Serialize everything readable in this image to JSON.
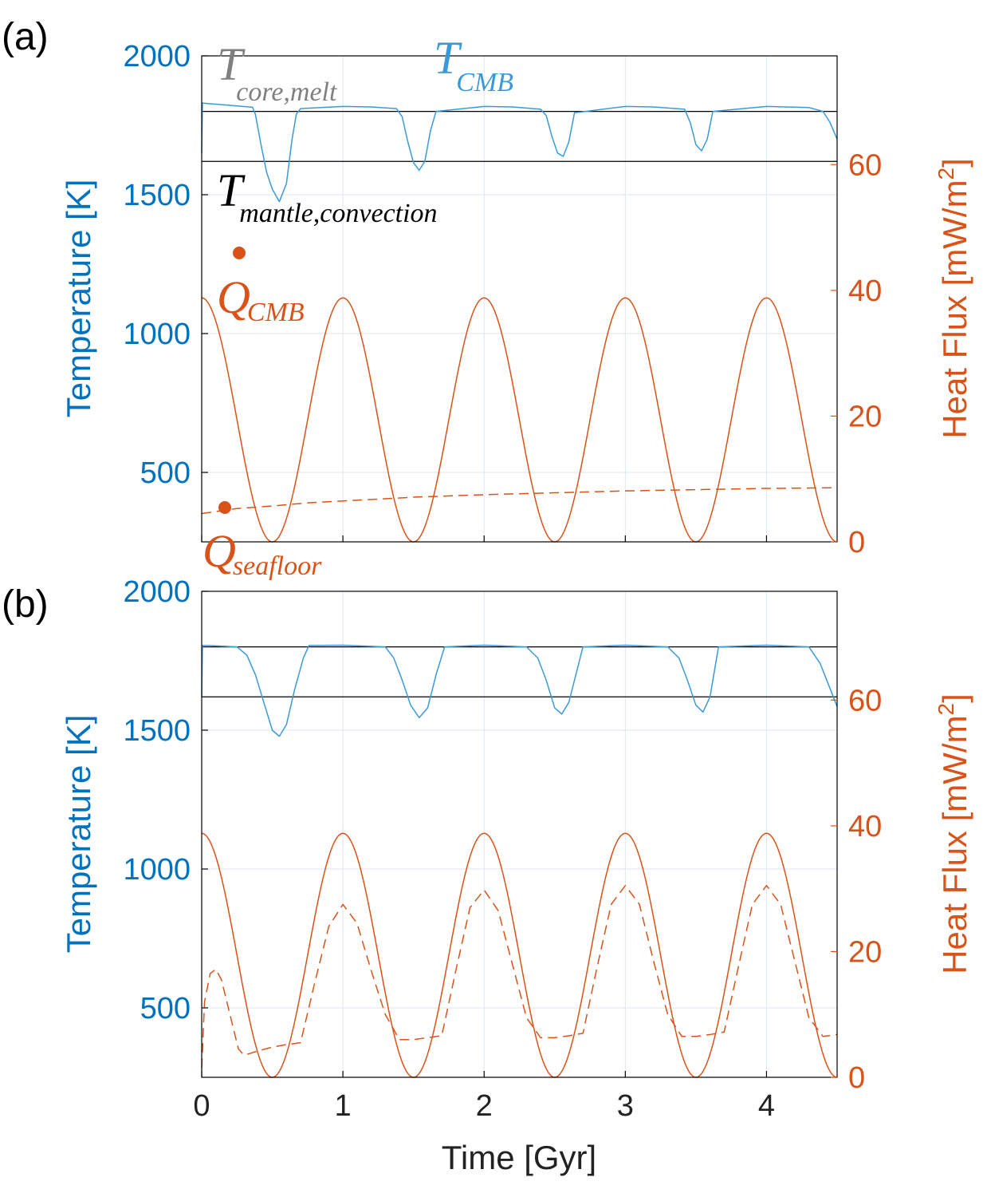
{
  "colors": {
    "temperature": "#0072BD",
    "t_cmb_line": "#3A9AD9",
    "heat_flux": "#D95319",
    "reference": "#000000",
    "core_melt_label": "#808080",
    "grid": "#DDE6EF"
  },
  "chart_data": [
    {
      "panel": "(a)",
      "type": "line",
      "ylabel_left": "Temperature [K]",
      "ylabel_right_main": "Heat Flux [mW/m",
      "ylabel_right_sup": "2",
      "ylabel_right_close": "]",
      "xlim": [
        0,
        4.5
      ],
      "ylim_left": [
        250,
        2000
      ],
      "ylim_right": [
        0,
        77.3
      ],
      "left_ticks": [
        500,
        1000,
        1500,
        2000
      ],
      "right_ticks": [
        0,
        20,
        40,
        60
      ],
      "x_ticks": [
        0,
        1,
        2,
        3,
        4
      ],
      "grid": true,
      "reference_lines": [
        {
          "name": "T core,melt",
          "axis": "left",
          "value": 1800
        },
        {
          "name": "T mantle,convection",
          "axis": "left",
          "value": 1620
        }
      ],
      "annotations": [
        {
          "id": "t_core_melt",
          "main": "T",
          "sub": "core,melt"
        },
        {
          "id": "t_cmb",
          "main": "T",
          "sub": "CMB"
        },
        {
          "id": "t_mantle_convection",
          "main": "T",
          "sub": "mantle,convection"
        },
        {
          "id": "q_cmb",
          "main": "Q",
          "sub": "CMB"
        },
        {
          "id": "q_seafloor",
          "main": "Q",
          "sub": "seafloor"
        }
      ],
      "series": [
        {
          "id": "T_CMB",
          "axis": "left",
          "style": "solid",
          "x": [
            0,
            0.005,
            0.05,
            0.2,
            0.36,
            0.38,
            0.42,
            0.46,
            0.5,
            0.55,
            0.6,
            0.64,
            0.67,
            0.7,
            1.0,
            1.2,
            1.38,
            1.42,
            1.46,
            1.5,
            1.54,
            1.58,
            1.62,
            1.66,
            2.0,
            2.2,
            2.4,
            2.44,
            2.48,
            2.52,
            2.56,
            2.6,
            2.64,
            3.0,
            3.2,
            3.42,
            3.46,
            3.5,
            3.54,
            3.58,
            3.62,
            4.0,
            4.3,
            4.4,
            4.45,
            4.5
          ],
          "y": [
            1650,
            1830,
            1828,
            1822,
            1815,
            1790,
            1680,
            1580,
            1520,
            1475,
            1540,
            1700,
            1790,
            1810,
            1818,
            1816,
            1810,
            1780,
            1690,
            1615,
            1588,
            1620,
            1730,
            1800,
            1818,
            1816,
            1808,
            1785,
            1710,
            1650,
            1638,
            1690,
            1795,
            1818,
            1816,
            1808,
            1760,
            1680,
            1658,
            1700,
            1800,
            1818,
            1814,
            1800,
            1760,
            1700
          ]
        },
        {
          "id": "Q_CMB",
          "axis": "right",
          "style": "solid",
          "formula": "38.8 * (1 + cos(2*pi*t)) / 2",
          "peaks": [
            [
              0,
              38.8
            ],
            [
              1,
              38.8
            ],
            [
              2,
              38.8
            ],
            [
              3,
              38.8
            ],
            [
              4,
              38.8
            ]
          ],
          "troughs": [
            [
              0.5,
              0
            ],
            [
              1.5,
              0
            ],
            [
              2.5,
              0
            ],
            [
              3.5,
              0
            ],
            [
              4.5,
              0
            ]
          ]
        },
        {
          "id": "Q_seafloor",
          "axis": "right",
          "style": "dashed",
          "x": [
            0,
            0.25,
            0.5,
            0.75,
            1.0,
            1.5,
            2.0,
            2.5,
            3.0,
            3.5,
            4.0,
            4.5
          ],
          "y": [
            4.5,
            5.3,
            5.7,
            6.2,
            6.5,
            7.1,
            7.5,
            7.8,
            8.1,
            8.3,
            8.5,
            8.6
          ]
        }
      ]
    },
    {
      "panel": "(b)",
      "type": "line",
      "ylabel_left": "Temperature [K]",
      "ylabel_right_main": "Heat Flux [mW/m",
      "ylabel_right_sup": "2",
      "ylabel_right_close": "]",
      "xlabel": "Time [Gyr]",
      "xlim": [
        0,
        4.5
      ],
      "ylim_left": [
        250,
        2000
      ],
      "ylim_right": [
        0,
        77.3
      ],
      "left_ticks": [
        500,
        1000,
        1500,
        2000
      ],
      "right_ticks": [
        0,
        20,
        40,
        60
      ],
      "x_ticks": [
        0,
        1,
        2,
        3,
        4
      ],
      "x_tick_labels": [
        "0",
        "1",
        "2",
        "3",
        "4"
      ],
      "grid": true,
      "reference_lines": [
        {
          "name": "T core,melt",
          "axis": "left",
          "value": 1800
        },
        {
          "name": "T mantle,convection",
          "axis": "left",
          "value": 1620
        }
      ],
      "series": [
        {
          "id": "T_CMB",
          "axis": "left",
          "style": "solid",
          "x": [
            0,
            0.005,
            0.05,
            0.25,
            0.32,
            0.38,
            0.44,
            0.5,
            0.55,
            0.6,
            0.66,
            0.72,
            0.76,
            1.0,
            1.3,
            1.36,
            1.42,
            1.48,
            1.54,
            1.6,
            1.66,
            1.72,
            2.0,
            2.3,
            2.38,
            2.44,
            2.5,
            2.55,
            2.6,
            2.65,
            2.7,
            3.0,
            3.3,
            3.38,
            3.44,
            3.5,
            3.55,
            3.6,
            3.66,
            4.0,
            4.3,
            4.38,
            4.45,
            4.5
          ],
          "y": [
            1620,
            1805,
            1805,
            1800,
            1770,
            1700,
            1600,
            1500,
            1478,
            1520,
            1650,
            1760,
            1805,
            1806,
            1800,
            1760,
            1680,
            1590,
            1545,
            1580,
            1700,
            1800,
            1806,
            1800,
            1760,
            1680,
            1580,
            1558,
            1600,
            1700,
            1800,
            1806,
            1800,
            1760,
            1680,
            1590,
            1565,
            1620,
            1800,
            1806,
            1800,
            1740,
            1650,
            1585
          ]
        },
        {
          "id": "Q_CMB",
          "axis": "right",
          "style": "solid",
          "formula": "38.8 * (1 + cos(2*pi*t)) / 2",
          "peaks": [
            [
              0,
              38.8
            ],
            [
              1,
              38.8
            ],
            [
              2,
              38.8
            ],
            [
              3,
              38.8
            ],
            [
              4,
              38.8
            ]
          ],
          "troughs": [
            [
              0.5,
              0
            ],
            [
              1.5,
              0
            ],
            [
              2.5,
              0
            ],
            [
              3.5,
              0
            ],
            [
              4.5,
              0
            ]
          ]
        },
        {
          "id": "Q_seafloor",
          "axis": "right",
          "style": "dashed",
          "x": [
            0,
            0.02,
            0.06,
            0.1,
            0.14,
            0.2,
            0.26,
            0.3,
            0.4,
            0.5,
            0.6,
            0.7,
            0.8,
            0.9,
            1.0,
            1.1,
            1.2,
            1.3,
            1.4,
            1.5,
            1.6,
            1.7,
            1.8,
            1.9,
            2.0,
            2.1,
            2.2,
            2.3,
            2.4,
            2.5,
            2.6,
            2.7,
            2.8,
            2.9,
            3.0,
            3.1,
            3.2,
            3.3,
            3.4,
            3.5,
            3.6,
            3.7,
            3.8,
            3.9,
            4.0,
            4.1,
            4.2,
            4.3,
            4.4,
            4.5
          ],
          "y": [
            1.5,
            12,
            16.5,
            17.2,
            15.5,
            10,
            4.5,
            3.5,
            4.2,
            4.8,
            5.2,
            5.5,
            15,
            24,
            27.5,
            24.5,
            17,
            10,
            6,
            6,
            6.3,
            6.6,
            17,
            27,
            29.8,
            26.5,
            18,
            9.5,
            6.3,
            6.3,
            6.6,
            7.0,
            17.5,
            27.5,
            30.5,
            27.5,
            18.5,
            10,
            6.5,
            6.5,
            6.8,
            7.2,
            17.5,
            27.5,
            30.5,
            27.5,
            18.5,
            9.5,
            6.5,
            6.8
          ]
        }
      ]
    }
  ]
}
